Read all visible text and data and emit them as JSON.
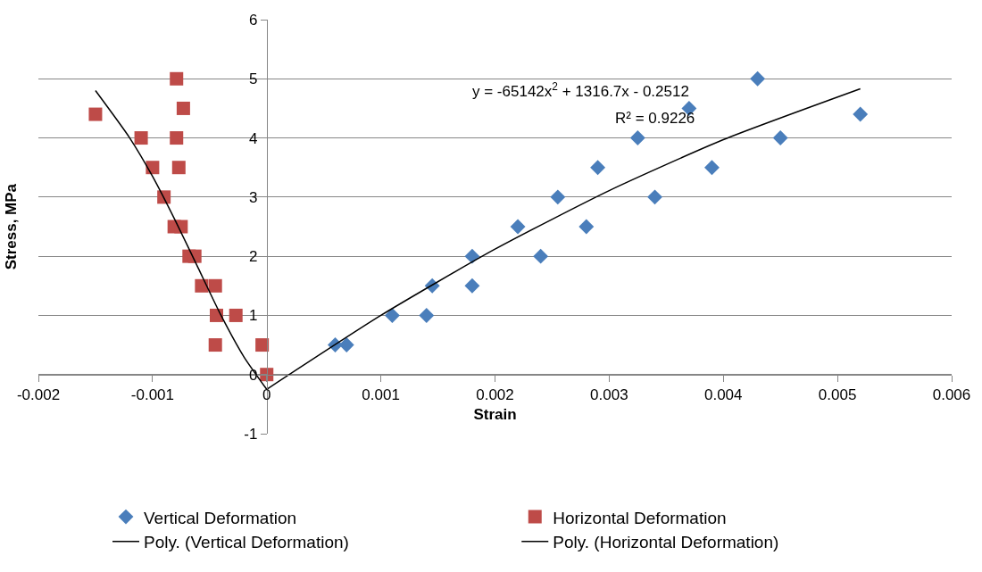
{
  "chart_data": {
    "type": "scatter",
    "xlabel": "Strain",
    "ylabel": "Stress, MPa",
    "xlim": [
      -0.002,
      0.006
    ],
    "xticks": [
      -0.002,
      -0.001,
      0,
      0.001,
      0.002,
      0.003,
      0.004,
      0.005,
      0.006
    ],
    "ylim": [
      -1,
      6
    ],
    "yticks": [
      -1,
      0,
      1,
      2,
      3,
      4,
      5,
      6
    ],
    "grid": "y",
    "legend": "bottom",
    "series": [
      {
        "name": "Vertical Deformation",
        "color": "#4a7ebb",
        "marker": "diamond",
        "x": [
          0.0006,
          0.0007,
          0.0011,
          0.0014,
          0.00145,
          0.0018,
          0.0018,
          0.0022,
          0.0024,
          0.00255,
          0.0028,
          0.0029,
          0.00325,
          0.0034,
          0.0037,
          0.0039,
          0.0043,
          0.0045,
          0.0052
        ],
        "values": [
          0.5,
          0.5,
          1,
          1,
          1.5,
          1.5,
          2,
          2.5,
          2,
          3,
          2.5,
          3.5,
          4,
          3,
          4.5,
          3.5,
          5,
          4,
          4.4
        ]
      },
      {
        "name": "Horizontal Deformation",
        "color": "#be4b48",
        "marker": "square",
        "x": [
          -0.0015,
          -0.0011,
          -0.001,
          -0.0009,
          -0.00079,
          -0.00073,
          -0.00079,
          -0.00077,
          -0.00081,
          -0.00075,
          -0.00068,
          -0.00063,
          -0.00057,
          -0.00045,
          -0.00044,
          -0.00027,
          -0.00045,
          -4e-05,
          0
        ],
        "values": [
          4.4,
          4,
          3.5,
          3,
          5,
          4.5,
          4,
          3.5,
          2.5,
          2.5,
          2,
          2,
          1.5,
          1.5,
          1,
          1,
          0.5,
          0.5,
          0
        ]
      },
      {
        "name": "Poly. (Vertical Deformation)",
        "type": "line",
        "color": "#000000",
        "marker": "none",
        "line_style": "solid",
        "x": [
          0,
          0.001,
          0.002,
          0.003,
          0.004,
          0.0052
        ],
        "values": [
          -0.25,
          1.0,
          2.12,
          3.11,
          3.97,
          4.83
        ]
      },
      {
        "name": "Poly. (Horizontal Deformation)",
        "type": "line",
        "color": "#000000",
        "marker": "none",
        "line_style": "solid",
        "x": [
          -0.0015,
          -0.0012,
          -0.001,
          -0.0008,
          -0.0006,
          -0.0004,
          -0.0002,
          0
        ],
        "values": [
          4.8,
          4.0,
          3.35,
          2.6,
          1.8,
          1.0,
          0.3,
          -0.25
        ]
      }
    ],
    "annotations": [
      "y = -65142x$^{2}$ + 1316.7x - 0.2512",
      "R² = 0.9226"
    ]
  }
}
